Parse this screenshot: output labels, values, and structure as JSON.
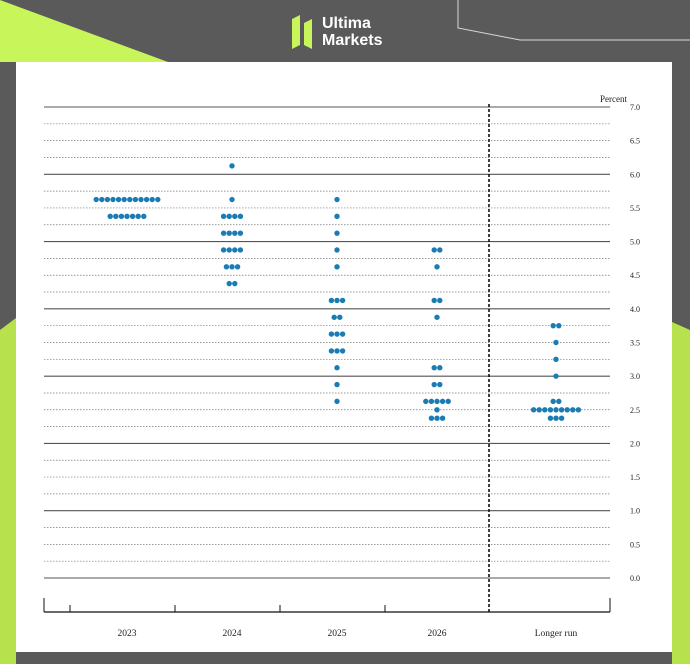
{
  "brand": {
    "line1": "Ultima",
    "line2": "Markets",
    "accent_color": "#c8f55a"
  },
  "chart_data": {
    "type": "scatter",
    "title": "",
    "ylabel": "Percent",
    "ylim": [
      0.0,
      7.0
    ],
    "y_ticks": [
      "0.0",
      "0.5",
      "1.0",
      "1.5",
      "2.0",
      "2.5",
      "3.0",
      "3.5",
      "4.0",
      "4.5",
      "5.0",
      "5.5",
      "6.0",
      "6.5",
      "7.0"
    ],
    "grid": true,
    "categories": [
      "2023",
      "2024",
      "2025",
      "2026",
      "Longer run"
    ],
    "dot_color": "#1b7bb3",
    "series": [
      {
        "category": "2023",
        "points": [
          {
            "y": 5.625,
            "count": 12
          },
          {
            "y": 5.375,
            "count": 7
          }
        ]
      },
      {
        "category": "2024",
        "points": [
          {
            "y": 6.125,
            "count": 1
          },
          {
            "y": 5.625,
            "count": 1
          },
          {
            "y": 5.375,
            "count": 4
          },
          {
            "y": 5.125,
            "count": 4
          },
          {
            "y": 4.875,
            "count": 4
          },
          {
            "y": 4.625,
            "count": 3
          },
          {
            "y": 4.375,
            "count": 2
          }
        ]
      },
      {
        "category": "2025",
        "points": [
          {
            "y": 5.625,
            "count": 1
          },
          {
            "y": 5.375,
            "count": 1
          },
          {
            "y": 5.125,
            "count": 1
          },
          {
            "y": 4.875,
            "count": 1
          },
          {
            "y": 4.625,
            "count": 1
          },
          {
            "y": 4.125,
            "count": 3
          },
          {
            "y": 3.875,
            "count": 2
          },
          {
            "y": 3.625,
            "count": 3
          },
          {
            "y": 3.375,
            "count": 3
          },
          {
            "y": 3.125,
            "count": 1
          },
          {
            "y": 2.875,
            "count": 1
          },
          {
            "y": 2.625,
            "count": 1
          }
        ]
      },
      {
        "category": "2026",
        "points": [
          {
            "y": 4.875,
            "count": 2
          },
          {
            "y": 4.625,
            "count": 1
          },
          {
            "y": 4.125,
            "count": 2
          },
          {
            "y": 3.875,
            "count": 1
          },
          {
            "y": 3.125,
            "count": 2
          },
          {
            "y": 2.875,
            "count": 2
          },
          {
            "y": 2.625,
            "count": 5
          },
          {
            "y": 2.5,
            "count": 1
          },
          {
            "y": 2.375,
            "count": 3
          }
        ]
      },
      {
        "category": "Longer run",
        "points": [
          {
            "y": 3.75,
            "count": 2
          },
          {
            "y": 3.5,
            "count": 1
          },
          {
            "y": 3.25,
            "count": 1
          },
          {
            "y": 3.0,
            "count": 1
          },
          {
            "y": 2.625,
            "count": 2
          },
          {
            "y": 2.5,
            "count": 9
          },
          {
            "y": 2.375,
            "count": 3
          }
        ]
      }
    ]
  }
}
